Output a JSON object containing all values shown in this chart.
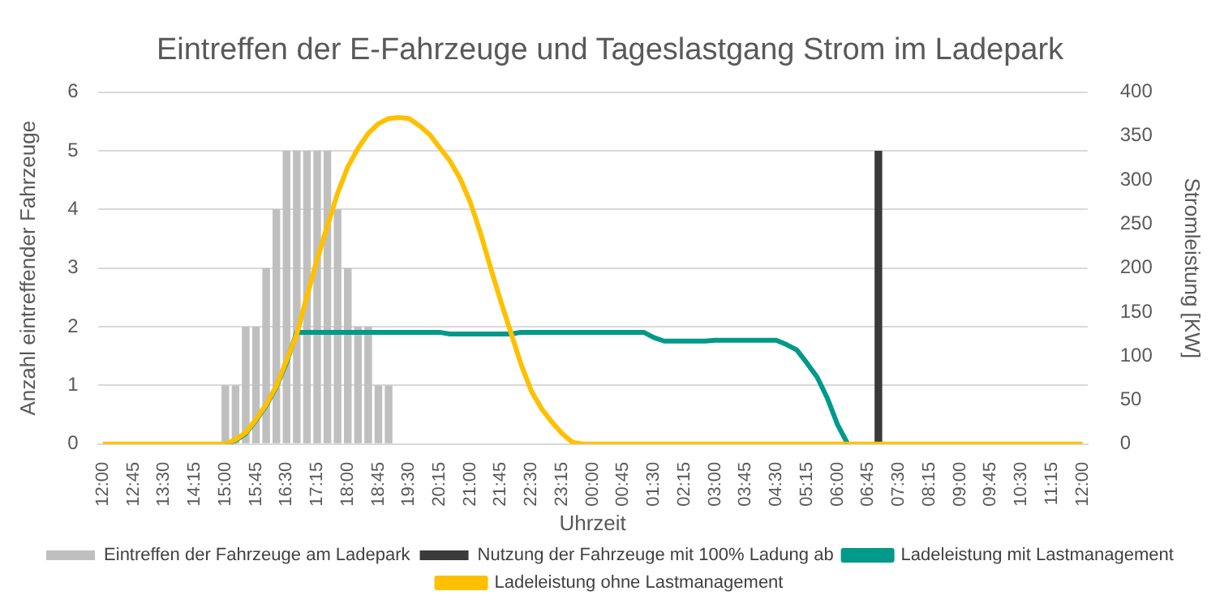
{
  "chart_data": {
    "type": "bar",
    "title": "Eintreffen der E-Fahrzeuge und Tageslastgang Strom im Ladepark",
    "xlabel": "Uhrzeit",
    "ylabel": "Anzahl eintreffender Fahrzeuge",
    "y2label": "Stromleistung [KW]",
    "categories": [
      "12:00",
      null,
      null,
      "12:45",
      null,
      null,
      "13:30",
      null,
      null,
      "14:15",
      null,
      null,
      "15:00",
      null,
      null,
      "15:45",
      null,
      null,
      "16:30",
      null,
      null,
      "17:15",
      null,
      null,
      "18:00",
      null,
      null,
      "18:45",
      null,
      null,
      "19:30",
      null,
      null,
      "20:15",
      null,
      null,
      "21:00",
      null,
      null,
      "21:45",
      null,
      null,
      "22:30",
      null,
      null,
      "23:15",
      null,
      null,
      "00:00",
      null,
      null,
      "00:45",
      null,
      null,
      "01:30",
      null,
      null,
      "02:15",
      null,
      null,
      "03:00",
      null,
      null,
      "03:45",
      null,
      null,
      "04:30",
      null,
      null,
      "05:15",
      null,
      null,
      "06:00",
      null,
      null,
      "06:45",
      null,
      null,
      "07:30",
      null,
      null,
      "08:15",
      null,
      null,
      "09:00",
      null,
      null,
      "09:45",
      null,
      null,
      "10:30",
      null,
      null,
      "11:15",
      null,
      null,
      "12:00"
    ],
    "series": [
      {
        "name": "Eintreffen der Fahrzeuge am Ladepark",
        "color": "#bfbfbf",
        "values": [
          null,
          null,
          null,
          null,
          null,
          null,
          null,
          null,
          null,
          null,
          null,
          null,
          1,
          1,
          2,
          2,
          3,
          4,
          5,
          5,
          5,
          5,
          5,
          4,
          3,
          2,
          2,
          1,
          1,
          null,
          null,
          null,
          null,
          null,
          null,
          null,
          null,
          null,
          null,
          null,
          null,
          null,
          null,
          null,
          null,
          null,
          null,
          null,
          null,
          null,
          null,
          null,
          null,
          null,
          null,
          null,
          null,
          null,
          null,
          null,
          null,
          null,
          null,
          null,
          null,
          null,
          null,
          null,
          null,
          null,
          null,
          null,
          null,
          null,
          null,
          null,
          null,
          null,
          null,
          null,
          null,
          null,
          null,
          null,
          null,
          null,
          null,
          null,
          null,
          null,
          null,
          null,
          null,
          null,
          null,
          null,
          null
        ]
      },
      {
        "name": "Nutzung der Fahrzeuge mit 100% Ladung ab",
        "color": "#3a3a3a",
        "values": [
          null,
          null,
          null,
          null,
          null,
          null,
          null,
          null,
          null,
          null,
          null,
          null,
          null,
          null,
          null,
          null,
          null,
          null,
          null,
          null,
          null,
          null,
          null,
          null,
          null,
          null,
          null,
          null,
          null,
          null,
          null,
          null,
          null,
          null,
          null,
          null,
          null,
          null,
          null,
          null,
          null,
          null,
          null,
          null,
          null,
          null,
          null,
          null,
          null,
          null,
          null,
          null,
          null,
          null,
          null,
          null,
          null,
          null,
          null,
          null,
          null,
          null,
          null,
          null,
          null,
          null,
          null,
          null,
          null,
          null,
          null,
          null,
          null,
          null,
          null,
          null,
          5,
          null,
          null,
          null,
          null,
          null,
          null,
          null,
          null,
          null,
          null,
          null,
          null,
          null,
          null,
          null,
          null,
          null,
          null,
          null,
          null
        ]
      },
      {
        "name": "Ladeleistung mit Lastmanagement",
        "type": "line",
        "axis": "y2",
        "color": "#00998a",
        "values": [
          null,
          null,
          null,
          null,
          null,
          null,
          null,
          null,
          null,
          null,
          null,
          null,
          0,
          4,
          12,
          27,
          44,
          65,
          93,
          127,
          127,
          127,
          127,
          127,
          127,
          127,
          127,
          127,
          127,
          127,
          127,
          127,
          127,
          127,
          125,
          125,
          125,
          125,
          125,
          125,
          125,
          127,
          127,
          127,
          127,
          127,
          127,
          127,
          127,
          127,
          127,
          127,
          127,
          127,
          121,
          117,
          117,
          117,
          117,
          117,
          118,
          118,
          118,
          118,
          118,
          118,
          118,
          113,
          107,
          92,
          76,
          52,
          22,
          0,
          null,
          null,
          null,
          null,
          null,
          null,
          null,
          null,
          null,
          null,
          null,
          null,
          null,
          null,
          null,
          null,
          null,
          null,
          null,
          null,
          null,
          null,
          null
        ]
      },
      {
        "name": "Ladeleistung ohne Lastmanagement",
        "type": "line",
        "axis": "y2",
        "color": "#ffc000",
        "values": [
          0,
          0,
          0,
          0,
          0,
          0,
          0,
          0,
          0,
          0,
          0,
          0,
          0,
          5,
          13,
          28,
          45,
          66,
          95,
          125,
          168,
          210,
          248,
          285,
          315,
          336,
          353,
          364,
          370,
          371,
          370,
          362,
          352,
          337,
          322,
          302,
          275,
          240,
          200,
          162,
          126,
          90,
          60,
          40,
          25,
          12,
          2,
          0,
          0,
          0,
          0,
          0,
          0,
          0,
          0,
          0,
          0,
          0,
          0,
          0,
          0,
          0,
          0,
          0,
          0,
          0,
          0,
          0,
          0,
          0,
          0,
          0,
          0,
          0,
          0,
          0,
          0,
          0,
          0,
          0,
          0,
          0,
          0,
          0,
          0,
          0,
          0,
          0,
          0,
          0,
          0,
          0,
          0,
          0,
          0,
          0,
          0
        ]
      }
    ],
    "ylim": [
      0,
      6
    ],
    "yticks": [
      0,
      1,
      2,
      3,
      4,
      5,
      6
    ],
    "y2lim": [
      0,
      400
    ],
    "y2ticks": [
      0,
      50,
      100,
      150,
      200,
      250,
      300,
      350,
      400
    ],
    "grid": "y",
    "legend": "bottom",
    "marker": "none",
    "line_style": "solid"
  }
}
